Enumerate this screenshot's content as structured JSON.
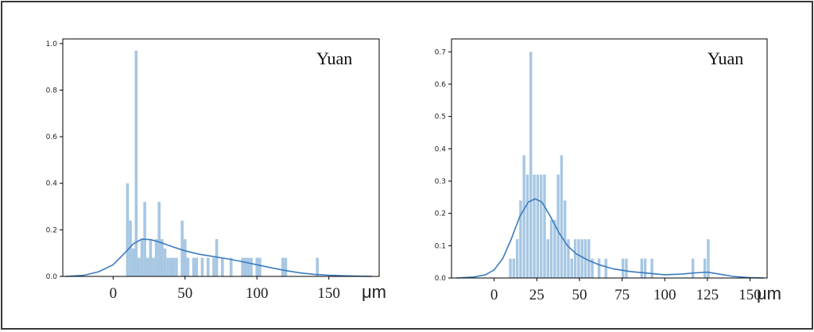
{
  "chart_data": [
    {
      "type": "bar",
      "annotation": "Yuan",
      "x_unit": "μm",
      "xlim": [
        -35,
        185
      ],
      "ylim": [
        0,
        1.02
      ],
      "ytick_labels": [
        "0.0",
        "0.2",
        "0.4",
        "0.6",
        "0.8",
        "1.0"
      ],
      "xtick_labels": [
        "0",
        "50",
        "100",
        "150"
      ],
      "bin_width": 2,
      "bars": [
        {
          "x": 10,
          "y": 0.4
        },
        {
          "x": 12,
          "y": 0.24
        },
        {
          "x": 14,
          "y": 0.12
        },
        {
          "x": 16,
          "y": 0.97
        },
        {
          "x": 18,
          "y": 0.08
        },
        {
          "x": 20,
          "y": 0.16
        },
        {
          "x": 22,
          "y": 0.32
        },
        {
          "x": 24,
          "y": 0.08
        },
        {
          "x": 26,
          "y": 0.16
        },
        {
          "x": 28,
          "y": 0.08
        },
        {
          "x": 30,
          "y": 0.16
        },
        {
          "x": 32,
          "y": 0.32
        },
        {
          "x": 34,
          "y": 0.16
        },
        {
          "x": 36,
          "y": 0.12
        },
        {
          "x": 38,
          "y": 0.08
        },
        {
          "x": 40,
          "y": 0.08
        },
        {
          "x": 42,
          "y": 0.08
        },
        {
          "x": 44,
          "y": 0.08
        },
        {
          "x": 48,
          "y": 0.24
        },
        {
          "x": 50,
          "y": 0.16
        },
        {
          "x": 52,
          "y": 0.08
        },
        {
          "x": 56,
          "y": 0.08
        },
        {
          "x": 58,
          "y": 0.08
        },
        {
          "x": 62,
          "y": 0.08
        },
        {
          "x": 66,
          "y": 0.08
        },
        {
          "x": 70,
          "y": 0.08
        },
        {
          "x": 72,
          "y": 0.16
        },
        {
          "x": 76,
          "y": 0.08
        },
        {
          "x": 82,
          "y": 0.08
        },
        {
          "x": 90,
          "y": 0.08
        },
        {
          "x": 92,
          "y": 0.08
        },
        {
          "x": 94,
          "y": 0.08
        },
        {
          "x": 96,
          "y": 0.08
        },
        {
          "x": 100,
          "y": 0.08
        },
        {
          "x": 102,
          "y": 0.08
        },
        {
          "x": 118,
          "y": 0.08
        },
        {
          "x": 120,
          "y": 0.08
        },
        {
          "x": 142,
          "y": 0.08
        }
      ],
      "kde": [
        [
          -33,
          0.0
        ],
        [
          -20,
          0.005
        ],
        [
          -10,
          0.02
        ],
        [
          0,
          0.05
        ],
        [
          8,
          0.1
        ],
        [
          14,
          0.14
        ],
        [
          20,
          0.16
        ],
        [
          26,
          0.158
        ],
        [
          32,
          0.148
        ],
        [
          40,
          0.13
        ],
        [
          50,
          0.11
        ],
        [
          60,
          0.095
        ],
        [
          70,
          0.085
        ],
        [
          80,
          0.075
        ],
        [
          90,
          0.063
        ],
        [
          100,
          0.05
        ],
        [
          110,
          0.037
        ],
        [
          120,
          0.025
        ],
        [
          130,
          0.015
        ],
        [
          140,
          0.009
        ],
        [
          150,
          0.005
        ],
        [
          165,
          0.002
        ],
        [
          180,
          0.0
        ]
      ]
    },
    {
      "type": "bar",
      "annotation": "Yuan",
      "x_unit": "μm",
      "xlim": [
        -25,
        160
      ],
      "ylim": [
        0,
        0.74
      ],
      "ytick_labels": [
        "0.0",
        "0.1",
        "0.2",
        "0.3",
        "0.4",
        "0.5",
        "0.6",
        "0.7"
      ],
      "xtick_labels": [
        "0",
        "25",
        "50",
        "75",
        "100",
        "125",
        "150"
      ],
      "bin_width": 1.6,
      "bars": [
        {
          "x": 9.5,
          "y": 0.06
        },
        {
          "x": 11.5,
          "y": 0.06
        },
        {
          "x": 13.5,
          "y": 0.12
        },
        {
          "x": 15.5,
          "y": 0.24
        },
        {
          "x": 17.5,
          "y": 0.38
        },
        {
          "x": 19.5,
          "y": 0.32
        },
        {
          "x": 21.5,
          "y": 0.7
        },
        {
          "x": 23.5,
          "y": 0.32
        },
        {
          "x": 25.5,
          "y": 0.32
        },
        {
          "x": 27.5,
          "y": 0.32
        },
        {
          "x": 29.5,
          "y": 0.32
        },
        {
          "x": 31.5,
          "y": 0.12
        },
        {
          "x": 33.5,
          "y": 0.18
        },
        {
          "x": 35.5,
          "y": 0.18
        },
        {
          "x": 37.5,
          "y": 0.32
        },
        {
          "x": 39.5,
          "y": 0.38
        },
        {
          "x": 41.5,
          "y": 0.24
        },
        {
          "x": 43.5,
          "y": 0.12
        },
        {
          "x": 45.5,
          "y": 0.06
        },
        {
          "x": 47.5,
          "y": 0.12
        },
        {
          "x": 49.5,
          "y": 0.12
        },
        {
          "x": 51.5,
          "y": 0.12
        },
        {
          "x": 53.5,
          "y": 0.12
        },
        {
          "x": 55.5,
          "y": 0.12
        },
        {
          "x": 57.5,
          "y": 0.06
        },
        {
          "x": 61.5,
          "y": 0.06
        },
        {
          "x": 65.5,
          "y": 0.06
        },
        {
          "x": 75.5,
          "y": 0.06
        },
        {
          "x": 77.5,
          "y": 0.06
        },
        {
          "x": 86.5,
          "y": 0.06
        },
        {
          "x": 88.5,
          "y": 0.06
        },
        {
          "x": 92.5,
          "y": 0.06
        },
        {
          "x": 116.5,
          "y": 0.06
        },
        {
          "x": 123.5,
          "y": 0.06
        },
        {
          "x": 125.5,
          "y": 0.12
        }
      ],
      "kde": [
        [
          -22,
          0.0
        ],
        [
          -12,
          0.003
        ],
        [
          -5,
          0.01
        ],
        [
          0,
          0.025
        ],
        [
          5,
          0.06
        ],
        [
          10,
          0.12
        ],
        [
          15,
          0.19
        ],
        [
          20,
          0.235
        ],
        [
          24,
          0.245
        ],
        [
          28,
          0.235
        ],
        [
          33,
          0.19
        ],
        [
          38,
          0.14
        ],
        [
          43,
          0.1
        ],
        [
          48,
          0.075
        ],
        [
          55,
          0.055
        ],
        [
          62,
          0.04
        ],
        [
          70,
          0.028
        ],
        [
          80,
          0.02
        ],
        [
          90,
          0.015
        ],
        [
          100,
          0.01
        ],
        [
          110,
          0.012
        ],
        [
          118,
          0.016
        ],
        [
          125,
          0.018
        ],
        [
          132,
          0.012
        ],
        [
          140,
          0.005
        ],
        [
          150,
          0.001
        ],
        [
          158,
          0.0
        ]
      ]
    }
  ]
}
